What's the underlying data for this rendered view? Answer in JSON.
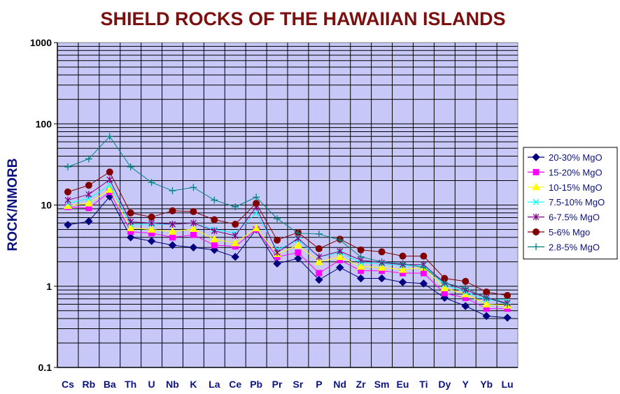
{
  "chart_data": {
    "type": "line",
    "title": "SHIELD ROCKS OF THE HAWAIIAN ISLANDS",
    "xlabel": "",
    "ylabel": "ROCK/NMORB",
    "yscale": "log",
    "ylim": [
      0.1,
      1000
    ],
    "yticks": [
      "0.1",
      "1",
      "10",
      "100",
      "1000"
    ],
    "grid": true,
    "legend": "right",
    "plot_background": "#c8c8f8",
    "categories": [
      "Cs",
      "Rb",
      "Ba",
      "Th",
      "U",
      "Nb",
      "K",
      "La",
      "Ce",
      "Pb",
      "Pr",
      "Sr",
      "P",
      "Nd",
      "Zr",
      "Sm",
      "Eu",
      "Ti",
      "Dy",
      "Y",
      "Yb",
      "Lu"
    ],
    "series": [
      {
        "name": "20-30% MgO",
        "color": "#000080",
        "marker": "diamond",
        "values": [
          5.7,
          6.3,
          12.7,
          4.0,
          3.6,
          3.2,
          3.0,
          2.8,
          2.3,
          5.0,
          1.9,
          2.2,
          1.2,
          1.7,
          1.25,
          1.25,
          1.12,
          1.08,
          0.72,
          0.57,
          0.43,
          0.41
        ]
      },
      {
        "name": "15-20% MgO",
        "color": "#ff00ff",
        "marker": "square",
        "values": [
          9.5,
          9.2,
          14.5,
          4.7,
          4.5,
          4.0,
          4.3,
          3.2,
          3.1,
          5.0,
          2.3,
          2.6,
          1.45,
          2.1,
          1.55,
          1.55,
          1.45,
          1.45,
          0.82,
          0.72,
          0.53,
          0.53
        ]
      },
      {
        "name": "10-15% MgO",
        "color": "#ffff00",
        "marker": "triangle",
        "values": [
          9.8,
          10.5,
          15.5,
          5.2,
          5.0,
          4.7,
          5.1,
          3.8,
          3.4,
          5.2,
          2.5,
          3.2,
          2.0,
          2.3,
          1.75,
          1.7,
          1.6,
          1.7,
          0.95,
          0.8,
          0.6,
          0.58
        ]
      },
      {
        "name": "7.5-10% MgO",
        "color": "#00ffff",
        "marker": "x",
        "values": [
          10.5,
          12.0,
          17.5,
          5.8,
          5.8,
          5.8,
          6.0,
          5.0,
          4.5,
          8.0,
          2.8,
          3.7,
          2.3,
          2.6,
          1.95,
          1.9,
          1.8,
          1.8,
          1.05,
          0.85,
          0.68,
          0.68
        ]
      },
      {
        "name": "6-7.5% MgO",
        "color": "#800080",
        "marker": "star",
        "values": [
          11.5,
          13.5,
          20.5,
          6.2,
          6.0,
          5.8,
          6.0,
          4.8,
          4.2,
          9.5,
          2.6,
          3.9,
          2.3,
          2.7,
          2.1,
          1.95,
          1.85,
          1.85,
          1.1,
          0.9,
          0.72,
          0.62
        ]
      },
      {
        "name": "5-6% Mgo",
        "color": "#800000",
        "marker": "circle",
        "values": [
          14.5,
          17.5,
          25.5,
          8.0,
          7.1,
          8.5,
          8.3,
          6.6,
          5.8,
          10.5,
          3.7,
          4.6,
          2.9,
          3.8,
          2.8,
          2.65,
          2.35,
          2.35,
          1.25,
          1.15,
          0.85,
          0.77
        ]
      },
      {
        "name": "2.8-5% MgO",
        "color": "#008080",
        "marker": "plus",
        "values": [
          29.5,
          37.0,
          70.0,
          29.5,
          19.0,
          15.0,
          16.5,
          11.5,
          9.5,
          12.5,
          6.8,
          4.5,
          4.4,
          3.7,
          2.3,
          2.0,
          1.9,
          1.7,
          1.1,
          0.95,
          0.72,
          0.6
        ]
      }
    ]
  }
}
